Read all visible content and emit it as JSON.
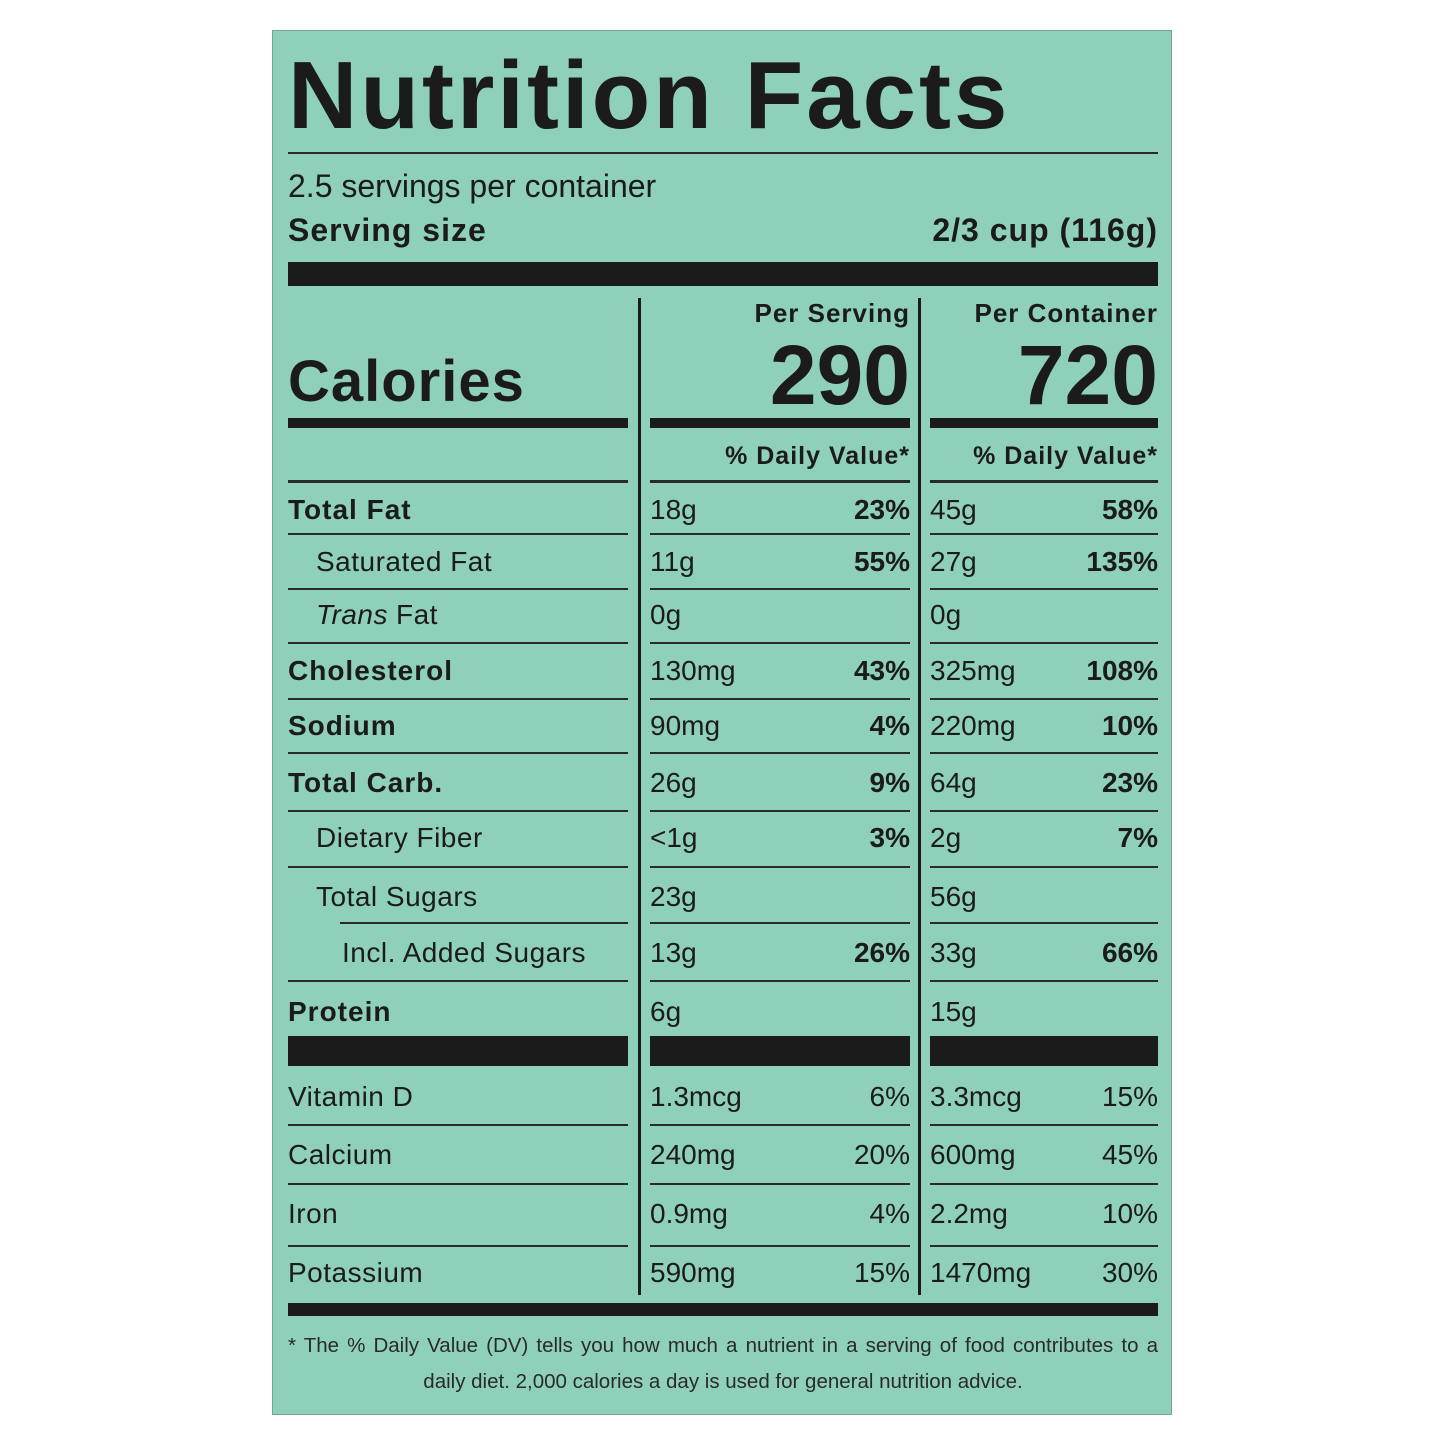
{
  "title": "Nutrition Facts",
  "servings": "2.5 servings per container",
  "serving_size_label": "Serving size",
  "serving_size": "2/3 cup (116g)",
  "columns": [
    "Per Serving",
    "Per Container"
  ],
  "calories_label": "Calories",
  "calories": [
    "290",
    "720"
  ],
  "daily_value_headers": [
    "% Daily Value*",
    "% Daily Value*"
  ],
  "nutrients": [
    {
      "name": "Total Fat",
      "per_serving": {
        "amount": "18g",
        "dv": "23%"
      },
      "per_container": {
        "amount": "45g",
        "dv": "58%"
      }
    },
    {
      "name": "Saturated Fat",
      "per_serving": {
        "amount": "11g",
        "dv": "55%"
      },
      "per_container": {
        "amount": "27g",
        "dv": "135%"
      }
    },
    {
      "name_italic": "Trans",
      "name": "Fat",
      "per_serving": {
        "amount": "0g"
      },
      "per_container": {
        "amount": "0g"
      }
    },
    {
      "name": "Cholesterol",
      "per_serving": {
        "amount": "130mg",
        "dv": "43%"
      },
      "per_container": {
        "amount": "325mg",
        "dv": "108%"
      }
    },
    {
      "name": "Sodium",
      "per_serving": {
        "amount": "90mg",
        "dv": "4%"
      },
      "per_container": {
        "amount": "220mg",
        "dv": "10%"
      }
    },
    {
      "name": "Total Carb.",
      "per_serving": {
        "amount": "26g",
        "dv": "9%"
      },
      "per_container": {
        "amount": "64g",
        "dv": "23%"
      }
    },
    {
      "name": "Dietary Fiber",
      "per_serving": {
        "amount": "<1g",
        "dv": "3%"
      },
      "per_container": {
        "amount": "2g",
        "dv": "7%"
      }
    },
    {
      "name": "Total Sugars",
      "per_serving": {
        "amount": "23g"
      },
      "per_container": {
        "amount": "56g"
      }
    },
    {
      "name": "Incl. Added Sugars",
      "per_serving": {
        "amount": "13g",
        "dv": "26%"
      },
      "per_container": {
        "amount": "33g",
        "dv": "66%"
      }
    },
    {
      "name": "Protein",
      "per_serving": {
        "amount": "6g"
      },
      "per_container": {
        "amount": "15g"
      }
    }
  ],
  "vitamins": [
    {
      "name": "Vitamin D",
      "per_serving": {
        "amount": "1.3mcg",
        "dv": "6%"
      },
      "per_container": {
        "amount": "3.3mcg",
        "dv": "15%"
      }
    },
    {
      "name": "Calcium",
      "per_serving": {
        "amount": "240mg",
        "dv": "20%"
      },
      "per_container": {
        "amount": "600mg",
        "dv": "45%"
      }
    },
    {
      "name": "Iron",
      "per_serving": {
        "amount": "0.9mg",
        "dv": "4%"
      },
      "per_container": {
        "amount": "2.2mg",
        "dv": "10%"
      }
    },
    {
      "name": "Potassium",
      "per_serving": {
        "amount": "590mg",
        "dv": "15%"
      },
      "per_container": {
        "amount": "1470mg",
        "dv": "30%"
      }
    }
  ],
  "footnote": "* The % Daily Value (DV) tells you how much a nutrient in a serving of food contributes to a daily diet. 2,000 calories a day is used for general nutrition advice."
}
